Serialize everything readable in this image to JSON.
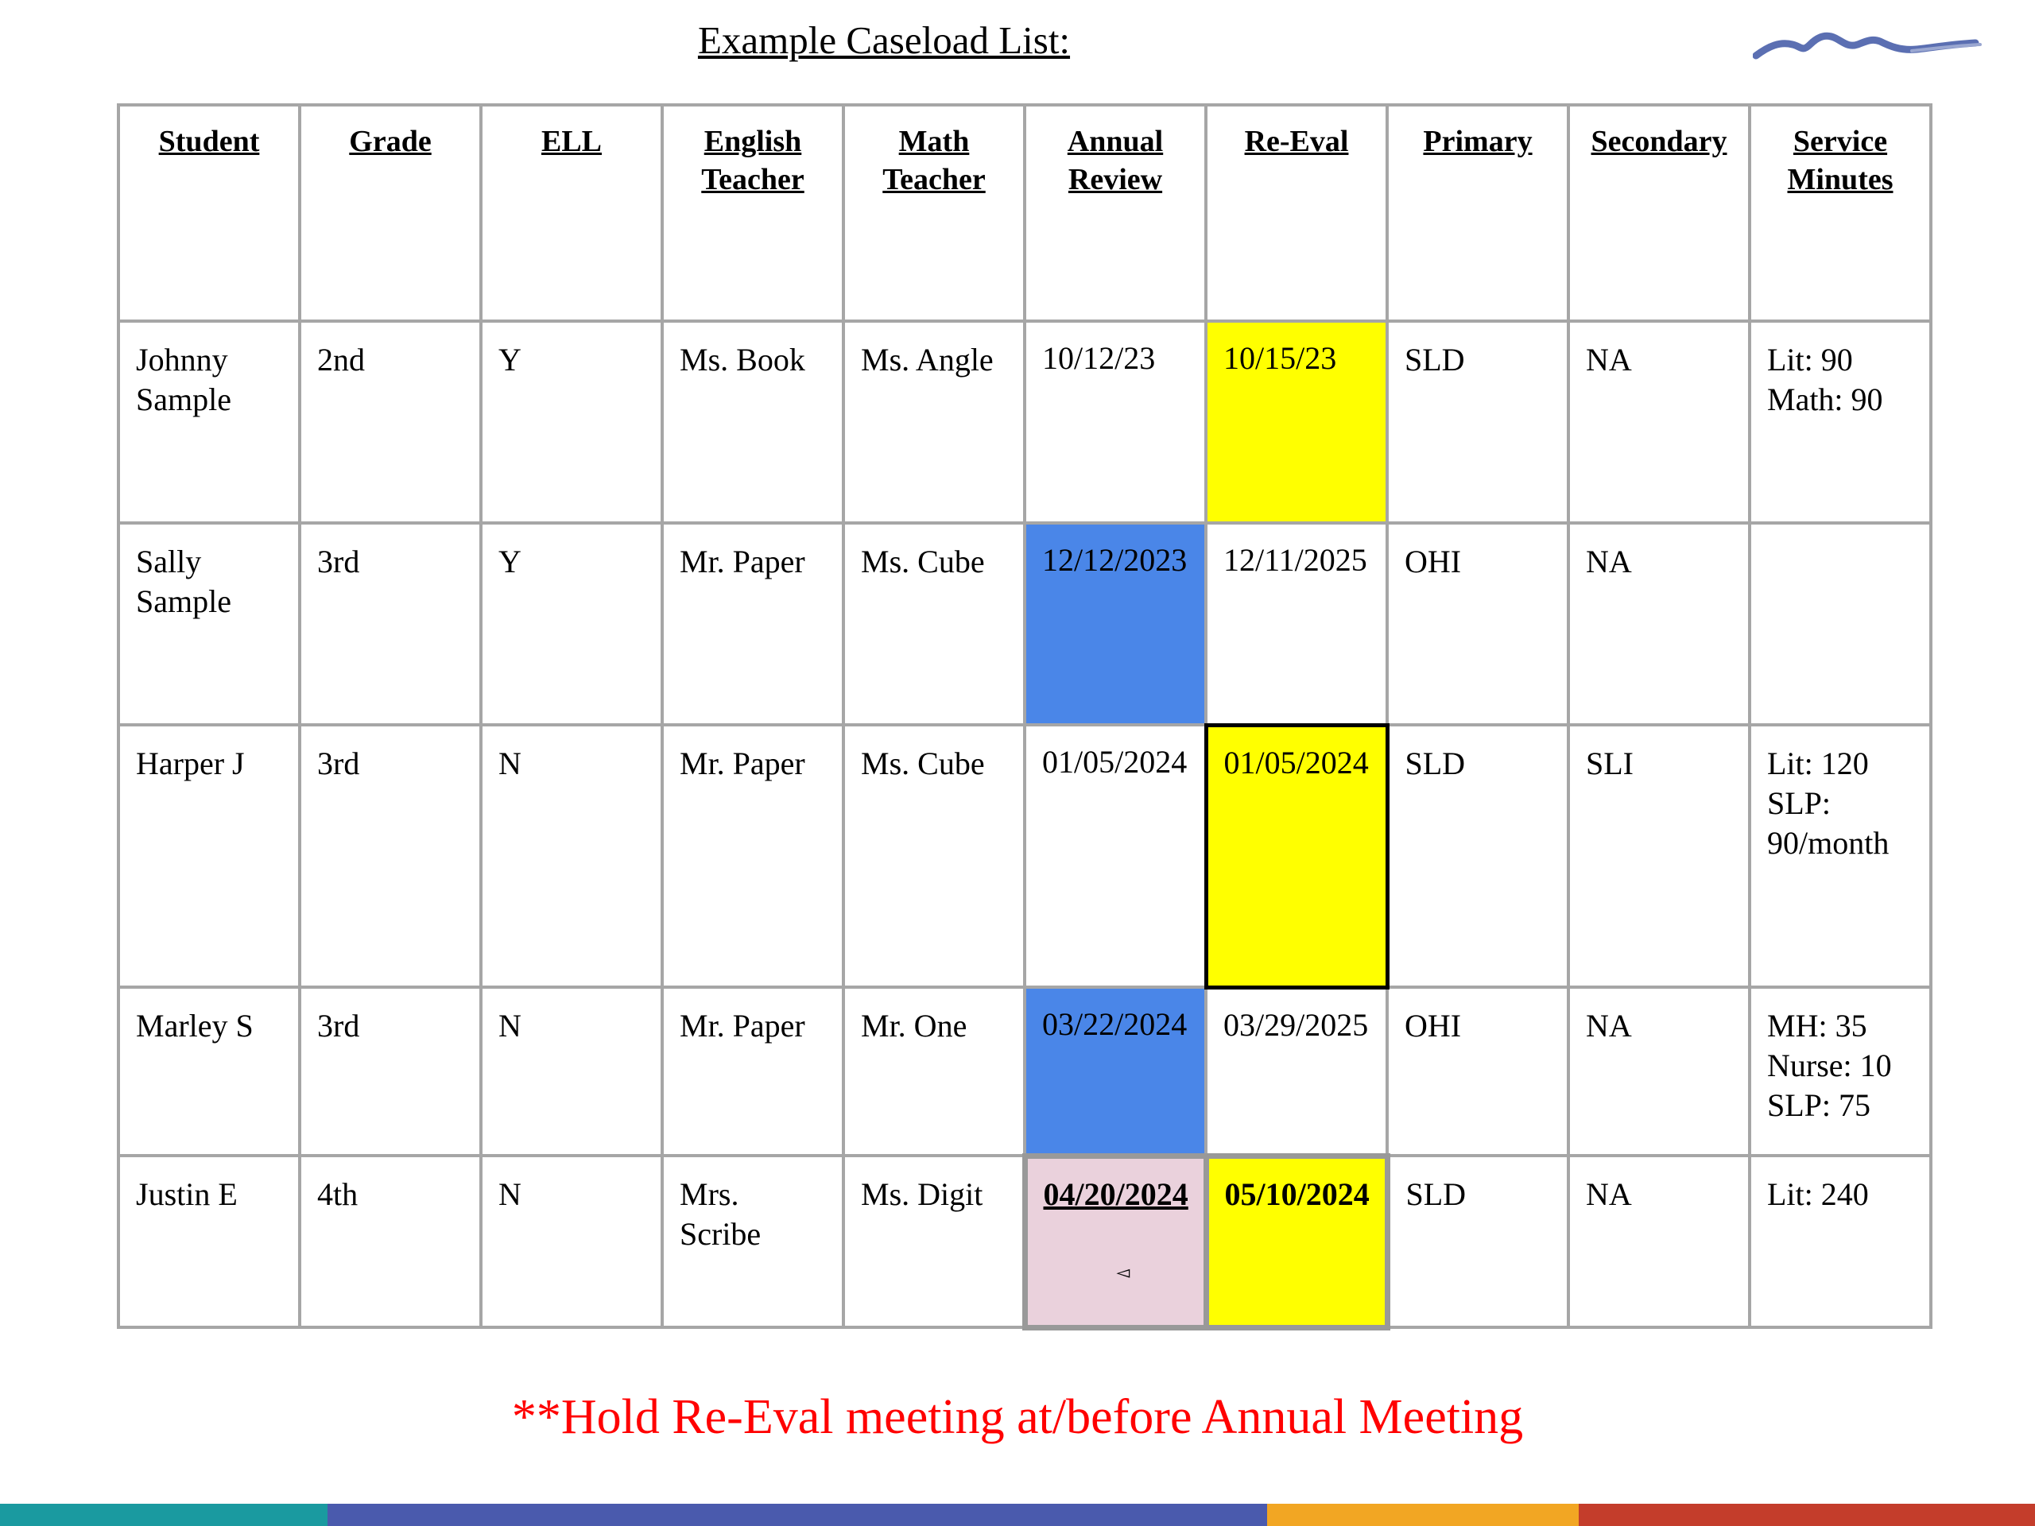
{
  "title": "Example Caseload List:",
  "headers": {
    "student": "Student",
    "grade": "Grade",
    "ell": "ELL",
    "english_teacher": "English Teacher",
    "math_teacher": "Math Teacher",
    "annual_review": "Annual Review",
    "re_eval": "Re-Eval",
    "primary": "Primary",
    "secondary": "Secondary",
    "service_minutes": "Service Minutes"
  },
  "rows": [
    {
      "student": "Johnny Sample",
      "grade": "2nd",
      "ell": "Y",
      "english_teacher": "Ms. Book",
      "math_teacher": "Ms. Angle",
      "annual_review": "10/12/23",
      "re_eval": "10/15/23",
      "primary": "SLD",
      "secondary": "NA",
      "service_minutes": [
        "Lit: 90",
        "Math: 90"
      ]
    },
    {
      "student": "Sally Sample",
      "grade": "3rd",
      "ell": "Y",
      "english_teacher": "Mr. Paper",
      "math_teacher": "Ms. Cube",
      "annual_review": "12/12/2023",
      "re_eval": "12/11/2025",
      "primary": "OHI",
      "secondary": "NA",
      "service_minutes": []
    },
    {
      "student": "Harper J",
      "grade": "3rd",
      "ell": "N",
      "english_teacher": "Mr. Paper",
      "math_teacher": "Ms. Cube",
      "annual_review": "01/05/2024",
      "re_eval": "01/05/2024",
      "primary": "SLD",
      "secondary": "SLI",
      "service_minutes": [
        "Lit: 120",
        "SLP:",
        "90/month"
      ]
    },
    {
      "student": "Marley S",
      "grade": "3rd",
      "ell": "N",
      "english_teacher": "Mr. Paper",
      "math_teacher": "Mr. One",
      "annual_review": "03/22/2024",
      "re_eval": "03/29/2025",
      "primary": "OHI",
      "secondary": "NA",
      "service_minutes": [
        "MH: 35",
        "Nurse: 10",
        "SLP: 75"
      ]
    },
    {
      "student": "Justin E",
      "grade": "4th",
      "ell": "N",
      "english_teacher": "Mrs. Scribe",
      "math_teacher": "Ms. Digit",
      "annual_review": "04/20/2024",
      "re_eval": "05/10/2024",
      "primary": "SLD",
      "secondary": "NA",
      "service_minutes": [
        "Lit: 240"
      ]
    }
  ],
  "note": "**Hold Re-Eval meeting at/before Annual Meeting",
  "colors": {
    "highlight_yellow": "#ffff00",
    "highlight_blue": "#4a86e8",
    "highlight_pink": "#ead1dc",
    "note_red": "#ff0000",
    "bar_teal": "#1a9aa0",
    "bar_blue": "#4a5aad",
    "bar_orange": "#f2a623",
    "bar_red": "#c43d2b"
  },
  "icons": {
    "logo": "mountain-logo",
    "cursor": "small-arrow-icon"
  }
}
